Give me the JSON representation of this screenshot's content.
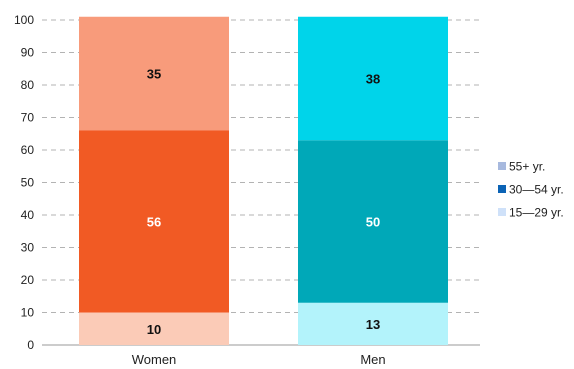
{
  "chart_data": {
    "type": "bar",
    "stacked": true,
    "categories": [
      "Women",
      "Men"
    ],
    "series": [
      {
        "name": "15—29 yr.",
        "values": [
          10,
          13
        ],
        "colors": [
          "#fbcbb7",
          "#b3f3fb"
        ],
        "label_colors": [
          "#111111",
          "#111111"
        ]
      },
      {
        "name": "30—54 yr.",
        "values": [
          56,
          50
        ],
        "colors": [
          "#f15a24",
          "#00a8b8"
        ],
        "label_colors": [
          "#ffffff",
          "#ffffff"
        ]
      },
      {
        "name": "55+ yr.",
        "values": [
          35,
          38
        ],
        "colors": [
          "#f89b7b",
          "#00d4ea"
        ],
        "label_colors": [
          "#111111",
          "#111111"
        ]
      }
    ],
    "ylim": [
      0,
      100
    ],
    "yticks": [
      0,
      10,
      20,
      30,
      40,
      50,
      60,
      70,
      80,
      90,
      100
    ],
    "grid": true,
    "legend_placement": "right",
    "legend": [
      {
        "label": "55+ yr.",
        "color": "#a7b9de"
      },
      {
        "label": "30—54 yr.",
        "color": "#0b63b5"
      },
      {
        "label": "15—29 yr.",
        "color": "#cfe1f9"
      }
    ],
    "title": "",
    "xlabel": "",
    "ylabel": ""
  }
}
